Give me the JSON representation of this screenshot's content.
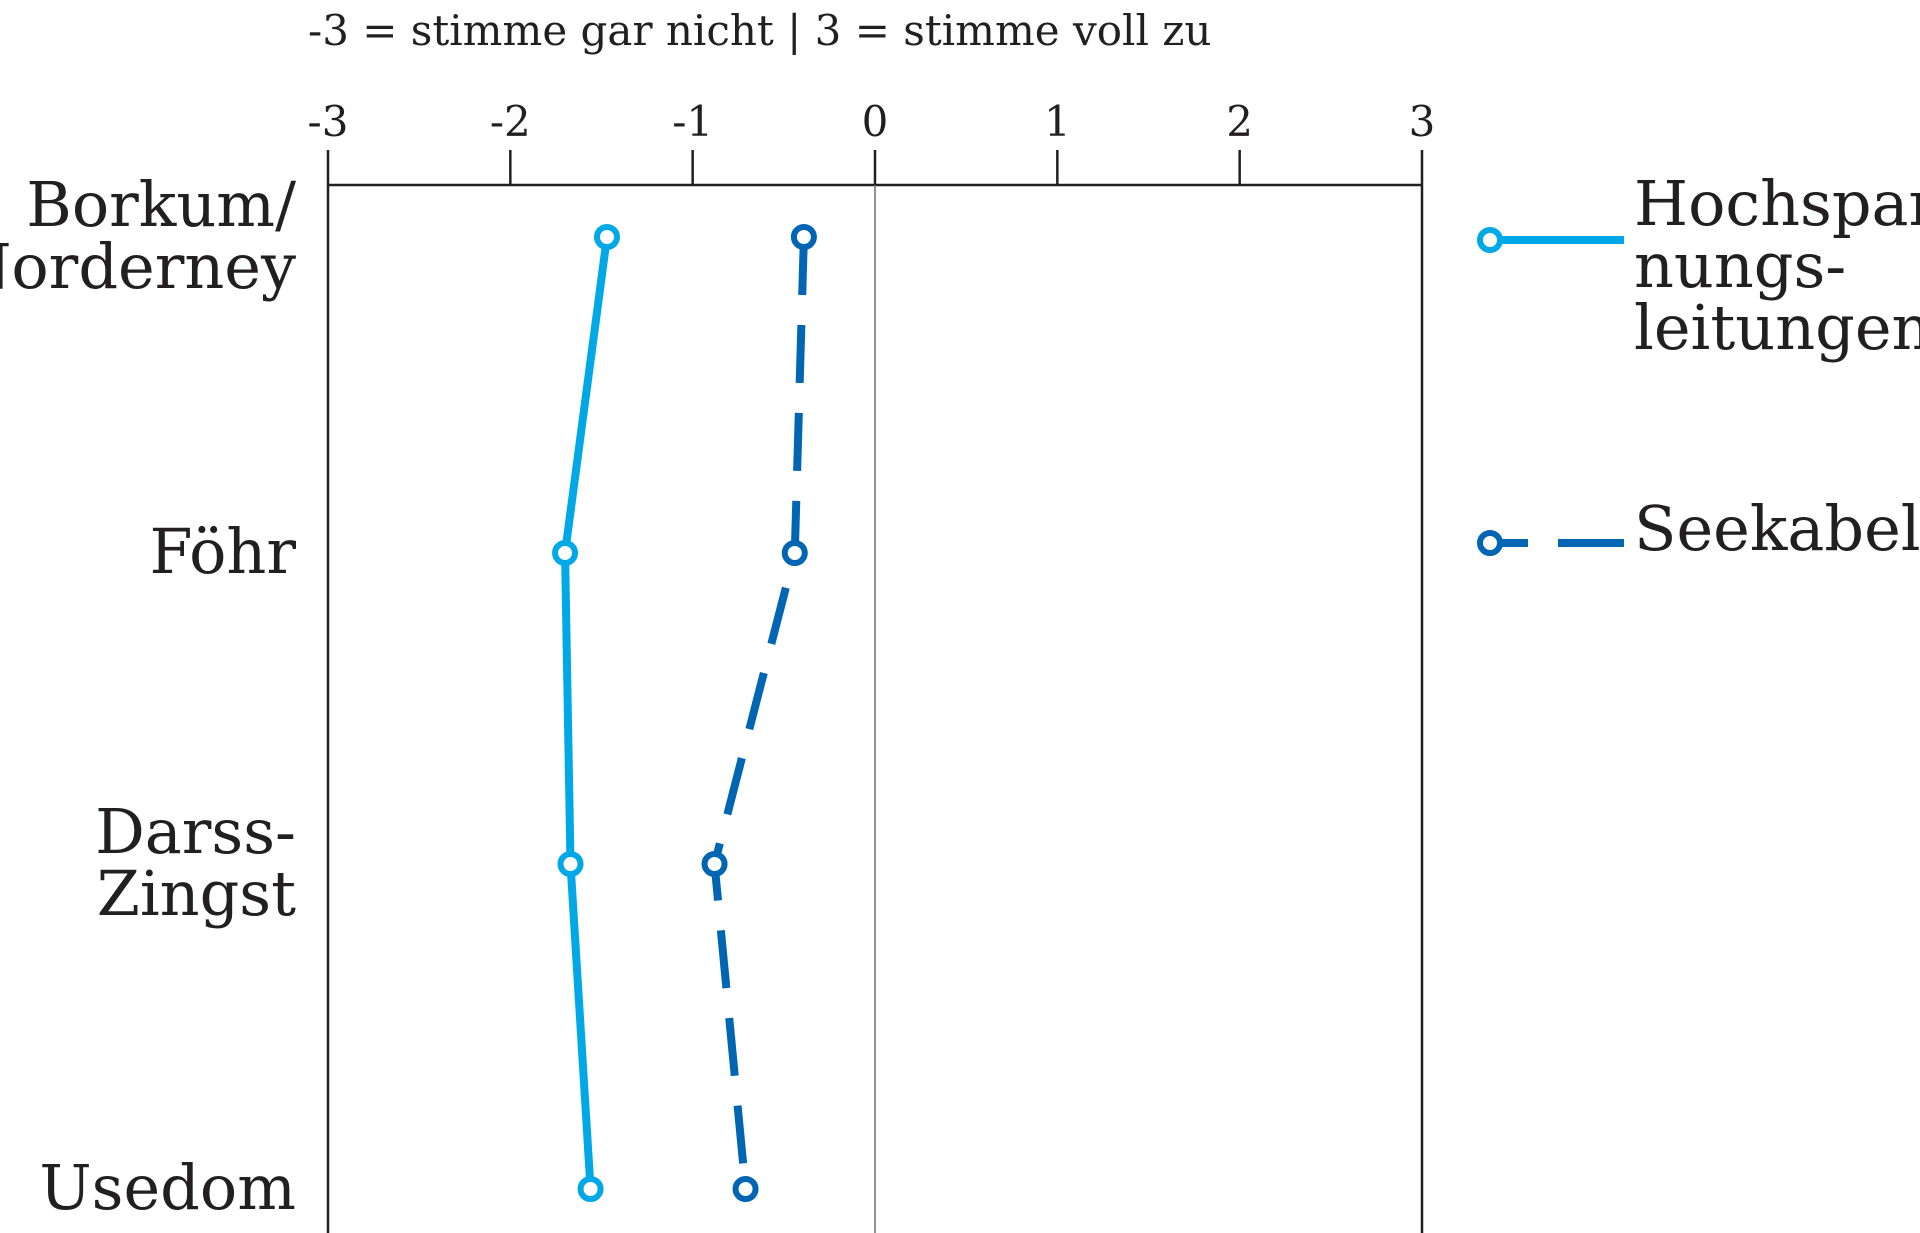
{
  "chart_data": {
    "type": "line",
    "orientation": "horizontal",
    "scale_note": "-3 = stimme gar nicht  |  3 = stimme voll zu",
    "xlim": [
      -3,
      3
    ],
    "x_ticks": [
      "-3",
      "-2",
      "-1",
      "0",
      "1",
      "2",
      "3"
    ],
    "categories": [
      [
        "Borkum/",
        "Norderney"
      ],
      [
        "Föhr"
      ],
      [
        "Darss-",
        "Zingst"
      ],
      [
        "Usedom"
      ]
    ],
    "series": [
      {
        "name": [
          "Hochspan-",
          "nungs-",
          "leitungen"
        ],
        "color": "#00a8e8",
        "dashed": false,
        "values": [
          -1.47,
          -1.7,
          -1.67,
          -1.56
        ]
      },
      {
        "name": [
          "Seekabel"
        ],
        "color": "#0065b3",
        "dashed": true,
        "values": [
          -0.39,
          -0.44,
          -0.88,
          -0.71
        ]
      }
    ],
    "legend_position": "right",
    "grid": false
  }
}
